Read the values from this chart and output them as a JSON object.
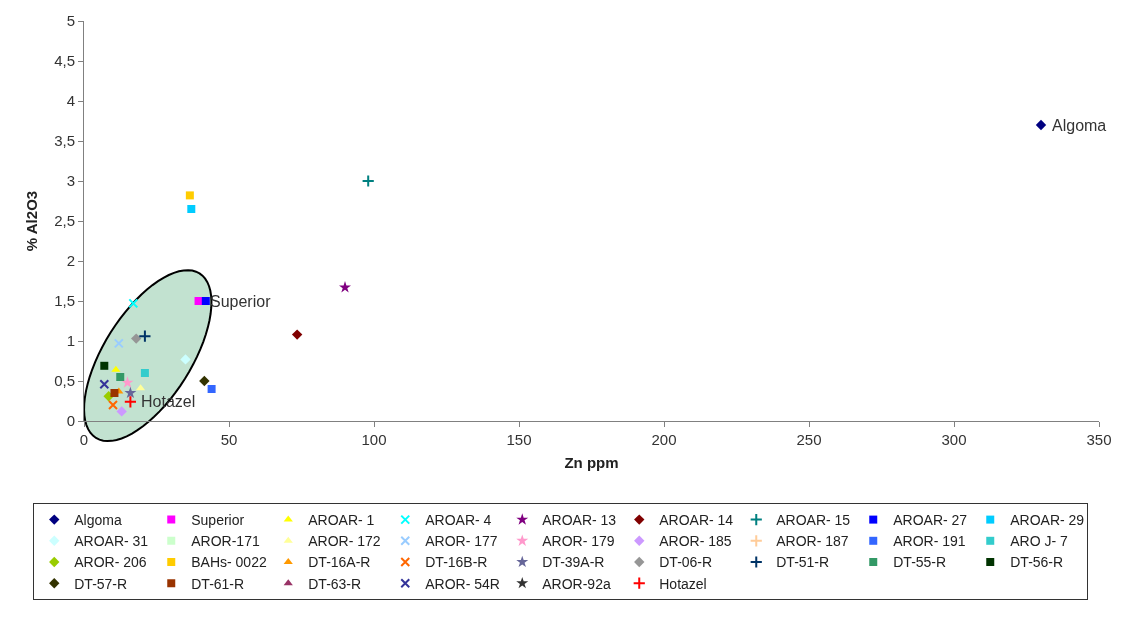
{
  "chart_data": {
    "type": "scatter",
    "xlabel": "Zn ppm",
    "ylabel": "% Al2O3",
    "xlim": [
      0,
      350
    ],
    "xticks": [
      0,
      50,
      100,
      150,
      200,
      250,
      300,
      350
    ],
    "ylim": [
      0,
      5
    ],
    "yticks": [
      0,
      {
        "value": 0.5,
        "label": "0,5"
      },
      1,
      {
        "value": 1.5,
        "label": "1,5"
      },
      2,
      {
        "value": 2.5,
        "label": "2,5"
      },
      3,
      {
        "value": 3.5,
        "label": "3,5"
      },
      4,
      {
        "value": 4.5,
        "label": "4,5"
      },
      5
    ],
    "grid": false,
    "legend": "bottom",
    "annotations": [
      {
        "text": "Algoma",
        "x": 330,
        "y": 3.7
      },
      {
        "text": "Superior",
        "x": 39.5,
        "y": 1.5
      },
      {
        "text": "Hotazel",
        "x": 16,
        "y": 0.24
      }
    ],
    "series": [
      {
        "name": "Algoma",
        "color": "#000080",
        "marker": "diamond",
        "x": [
          330
        ],
        "values": [
          3.7
        ]
      },
      {
        "name": "Superior",
        "color": "#ff00ff",
        "marker": "square",
        "x": [
          39.5
        ],
        "values": [
          1.5
        ]
      },
      {
        "name": "AROAR- 1",
        "color": "#ffff00",
        "marker": "triangle",
        "x": [
          11
        ],
        "values": [
          0.64
        ]
      },
      {
        "name": "AROAR- 4",
        "color": "#00ffff",
        "marker": "cross",
        "x": [
          17
        ],
        "values": [
          1.47
        ]
      },
      {
        "name": "AROAR- 13",
        "color": "#800080",
        "marker": "star",
        "x": [
          90
        ],
        "values": [
          1.67
        ]
      },
      {
        "name": "AROAR- 14",
        "color": "#800000",
        "marker": "diamond",
        "x": [
          73.5
        ],
        "values": [
          1.08
        ]
      },
      {
        "name": "AROAR- 15",
        "color": "#008080",
        "marker": "plus",
        "x": [
          98
        ],
        "values": [
          3.0
        ]
      },
      {
        "name": "AROAR- 27",
        "color": "#0000ff",
        "marker": "square",
        "x": [
          42
        ],
        "values": [
          1.5
        ]
      },
      {
        "name": "AROAR- 29",
        "color": "#00ccff",
        "marker": "square",
        "x": [
          37
        ],
        "values": [
          2.65
        ]
      },
      {
        "name": "AROAR- 31",
        "color": "#ccffff",
        "marker": "diamond",
        "x": [
          35
        ],
        "values": [
          0.77
        ]
      },
      {
        "name": "AROR-171",
        "color": "#ccffcc",
        "marker": "square",
        "x": [
          null
        ],
        "values": [
          null
        ]
      },
      {
        "name": "AROR- 172",
        "color": "#ffff99",
        "marker": "triangle",
        "x": [
          19.5
        ],
        "values": [
          0.41
        ]
      },
      {
        "name": "AROR- 177",
        "color": "#99ccff",
        "marker": "cross",
        "x": [
          12
        ],
        "values": [
          0.97
        ]
      },
      {
        "name": "AROR- 179",
        "color": "#ff99cc",
        "marker": "star",
        "x": [
          15
        ],
        "values": [
          0.48
        ]
      },
      {
        "name": "AROR- 185",
        "color": "#cc99ff",
        "marker": "diamond",
        "x": [
          13
        ],
        "values": [
          0.12
        ]
      },
      {
        "name": "AROR- 187",
        "color": "#ffcc99",
        "marker": "plus",
        "x": [
          null
        ],
        "values": [
          null
        ]
      },
      {
        "name": "AROR- 191",
        "color": "#3366ff",
        "marker": "square",
        "x": [
          44
        ],
        "values": [
          0.4
        ]
      },
      {
        "name": "ARO J- 7",
        "color": "#33cccc",
        "marker": "square",
        "x": [
          21
        ],
        "values": [
          0.6
        ]
      },
      {
        "name": "AROR- 206",
        "color": "#99cc00",
        "marker": "diamond",
        "x": [
          8.5
        ],
        "values": [
          0.31
        ]
      },
      {
        "name": "BAHs- 0022",
        "color": "#ffcc00",
        "marker": "square",
        "x": [
          36.5
        ],
        "values": [
          2.82
        ]
      },
      {
        "name": "DT-16A-R",
        "color": "#ff9900",
        "marker": "triangle",
        "x": [
          12
        ],
        "values": [
          0.37
        ]
      },
      {
        "name": "DT-16B-R",
        "color": "#ff6600",
        "marker": "cross",
        "x": [
          10
        ],
        "values": [
          0.2
        ]
      },
      {
        "name": "DT-39A-R",
        "color": "#666699",
        "marker": "star",
        "x": [
          16
        ],
        "values": [
          0.35
        ]
      },
      {
        "name": "DT-06-R",
        "color": "#969696",
        "marker": "diamond",
        "x": [
          18
        ],
        "values": [
          1.03
        ]
      },
      {
        "name": "DT-51-R",
        "color": "#003366",
        "marker": "plus",
        "x": [
          21
        ],
        "values": [
          1.06
        ]
      },
      {
        "name": "DT-55-R",
        "color": "#339966",
        "marker": "square",
        "x": [
          12.5
        ],
        "values": [
          0.55
        ]
      },
      {
        "name": "DT-56-R",
        "color": "#003300",
        "marker": "square",
        "x": [
          7
        ],
        "values": [
          0.69
        ]
      },
      {
        "name": "DT-57-R",
        "color": "#333300",
        "marker": "diamond",
        "x": [
          41.5
        ],
        "values": [
          0.5
        ]
      },
      {
        "name": "DT-61-R",
        "color": "#993300",
        "marker": "square",
        "x": [
          10.5
        ],
        "values": [
          0.35
        ]
      },
      {
        "name": "DT-63-R",
        "color": "#993366",
        "marker": "triangle",
        "x": [
          null
        ],
        "values": [
          null
        ]
      },
      {
        "name": "AROR- 54R",
        "color": "#333399",
        "marker": "cross",
        "x": [
          7
        ],
        "values": [
          0.46
        ]
      },
      {
        "name": "AROR-92a",
        "color": "#333333",
        "marker": "star",
        "x": [
          null
        ],
        "values": [
          null
        ]
      },
      {
        "name": "Hotazel",
        "color": "#ff0000",
        "marker": "plus",
        "x": [
          16
        ],
        "values": [
          0.24
        ]
      }
    ]
  }
}
